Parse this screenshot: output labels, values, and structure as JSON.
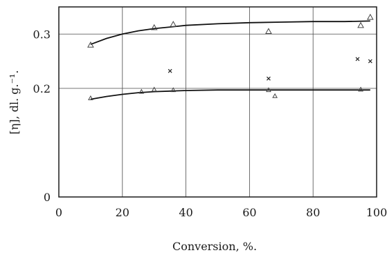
{
  "chart_data": {
    "type": "scatter",
    "title": "",
    "xlabel": "Conversion, %.",
    "ylabel": "[η], dl. g.⁻¹.",
    "xlim": [
      0,
      100
    ],
    "ylim": [
      0,
      0.35
    ],
    "x_ticks": [
      0,
      20,
      40,
      60,
      80,
      100
    ],
    "x_tick_labels": [
      "0",
      "20",
      "40",
      "60",
      "80",
      "100"
    ],
    "y_ticks": [
      0,
      0.2,
      0.3
    ],
    "y_tick_labels": [
      "0",
      "0.2",
      "0.3"
    ],
    "grid": true,
    "series": [
      {
        "marker": "triangle",
        "points": [
          {
            "x": 10,
            "y": 0.28
          },
          {
            "x": 30,
            "y": 0.312
          },
          {
            "x": 36,
            "y": 0.318
          },
          {
            "x": 66,
            "y": 0.305
          },
          {
            "x": 95,
            "y": 0.316
          },
          {
            "x": 98,
            "y": 0.331
          }
        ],
        "curve": [
          {
            "x": 10,
            "y": 0.281
          },
          {
            "x": 15,
            "y": 0.292
          },
          {
            "x": 20,
            "y": 0.3
          },
          {
            "x": 25,
            "y": 0.306
          },
          {
            "x": 30,
            "y": 0.31
          },
          {
            "x": 35,
            "y": 0.313
          },
          {
            "x": 40,
            "y": 0.316
          },
          {
            "x": 50,
            "y": 0.319
          },
          {
            "x": 60,
            "y": 0.321
          },
          {
            "x": 70,
            "y": 0.322
          },
          {
            "x": 80,
            "y": 0.323
          },
          {
            "x": 90,
            "y": 0.323
          },
          {
            "x": 98,
            "y": 0.324
          }
        ]
      },
      {
        "marker": "cross",
        "points": [
          {
            "x": 35,
            "y": 0.232
          },
          {
            "x": 66,
            "y": 0.218
          },
          {
            "x": 94,
            "y": 0.254
          },
          {
            "x": 98,
            "y": 0.25
          }
        ],
        "curve": []
      },
      {
        "marker": "triangle-small",
        "points": [
          {
            "x": 10,
            "y": 0.182
          },
          {
            "x": 26,
            "y": 0.194
          },
          {
            "x": 30,
            "y": 0.198
          },
          {
            "x": 36,
            "y": 0.197
          },
          {
            "x": 66,
            "y": 0.197
          },
          {
            "x": 68,
            "y": 0.186
          },
          {
            "x": 95,
            "y": 0.198
          }
        ],
        "curve": [
          {
            "x": 10,
            "y": 0.18
          },
          {
            "x": 15,
            "y": 0.185
          },
          {
            "x": 20,
            "y": 0.189
          },
          {
            "x": 25,
            "y": 0.192
          },
          {
            "x": 30,
            "y": 0.194
          },
          {
            "x": 35,
            "y": 0.195
          },
          {
            "x": 40,
            "y": 0.196
          },
          {
            "x": 50,
            "y": 0.197
          },
          {
            "x": 60,
            "y": 0.197
          },
          {
            "x": 70,
            "y": 0.197
          },
          {
            "x": 80,
            "y": 0.197
          },
          {
            "x": 90,
            "y": 0.197
          },
          {
            "x": 98,
            "y": 0.197
          }
        ]
      }
    ]
  }
}
